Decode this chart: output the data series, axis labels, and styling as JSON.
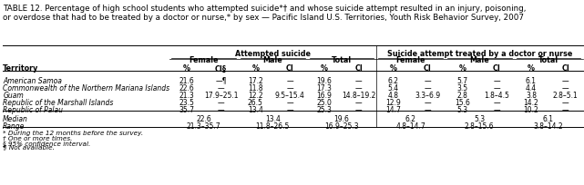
{
  "title": "TABLE 12. Percentage of high school students who attempted suicide*† and whose suicide attempt resulted in an injury, poisoning,\nor overdose that had to be treated by a doctor or nurse,* by sex — Pacific Island U.S. Territories, Youth Risk Behavior Survey, 2007",
  "header_group1": "Attempted suicide",
  "header_group2": "Suicide attempt treated by a doctor or nurse",
  "subheaders": [
    "Female",
    "Male",
    "Total",
    "Female",
    "Male",
    "Total"
  ],
  "col_labels": [
    "%",
    "CI§",
    "%",
    "CI",
    "%",
    "CI",
    "%",
    "CI",
    "%",
    "CI",
    "%",
    "CI"
  ],
  "territory_col": "Territory",
  "rows": [
    [
      "American Samoa",
      "21.6",
      "—¶",
      "17.2",
      "—",
      "19.6",
      "—",
      "6.2",
      "—",
      "5.7",
      "—",
      "6.1",
      "—"
    ],
    [
      "Commonwealth of the Northern Mariana Islands",
      "22.6",
      "—",
      "11.8",
      "—",
      "17.3",
      "—",
      "5.4",
      "—",
      "3.5",
      "—",
      "4.4",
      "—"
    ],
    [
      "Guam",
      "21.3",
      "17.9–25.1",
      "12.2",
      "9.5–15.4",
      "16.9",
      "14.8–19.2",
      "4.8",
      "3.3–6.9",
      "2.8",
      "1.8–4.5",
      "3.8",
      "2.8–5.1"
    ],
    [
      "Republic of the Marshall Islands",
      "23.5",
      "—",
      "26.5",
      "—",
      "25.0",
      "—",
      "12.9",
      "—",
      "15.6",
      "—",
      "14.2",
      "—"
    ],
    [
      "Republic of Palau",
      "35.7",
      "—",
      "13.4",
      "—",
      "25.3",
      "—",
      "14.7",
      "—",
      "5.3",
      "—",
      "10.2",
      "—"
    ]
  ],
  "median_row": [
    "Median",
    "22.6",
    "13.4",
    "19.6",
    "6.2",
    "5.3",
    "6.1"
  ],
  "range_row": [
    "Range",
    "21.3–35.7",
    "11.8–26.5",
    "16.9–25.3",
    "4.8–14.7",
    "2.8–15.6",
    "3.8–14.2"
  ],
  "footnotes": [
    "* During the 12 months before the survey.",
    "† One or more times.",
    "§ 95% confidence interval.",
    "¶ Not available."
  ],
  "bg_color": "#ffffff",
  "line_color": "#000000",
  "font_size_title": 6.3,
  "font_size_header": 5.8,
  "font_size_body": 5.5,
  "font_size_footnote": 5.2
}
